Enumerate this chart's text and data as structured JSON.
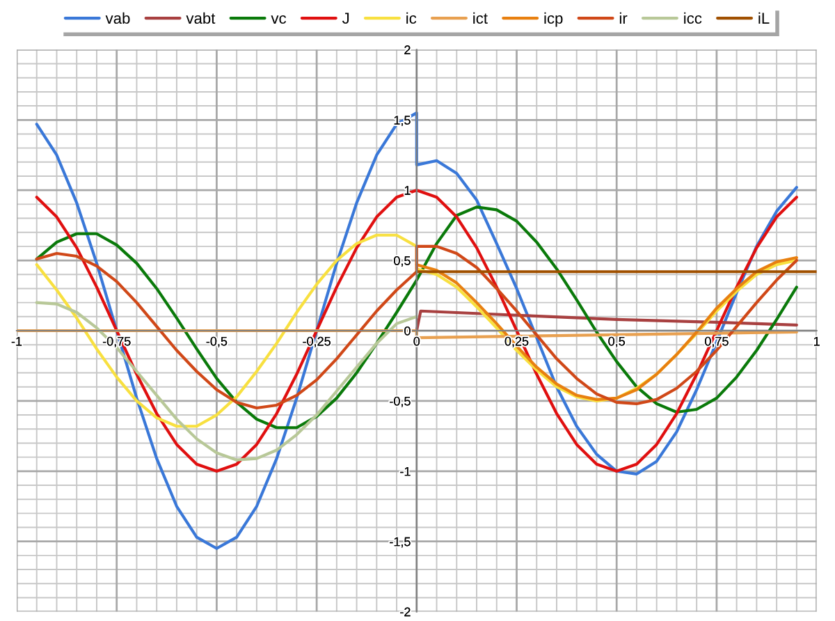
{
  "chart_data": {
    "type": "line",
    "legend": "top",
    "grid": true,
    "xlim": [
      -1,
      1
    ],
    "ylim": [
      -2,
      2
    ],
    "xticks": [
      -1,
      {
        "value": -0.75,
        "label": "-0,75"
      },
      {
        "value": -0.5,
        "label": "-0,5"
      },
      {
        "value": -0.25,
        "label": "-0,25"
      },
      0,
      {
        "value": 0.25,
        "label": "0,25"
      },
      {
        "value": 0.5,
        "label": "0,5"
      },
      {
        "value": 0.75,
        "label": "0,75"
      },
      1
    ],
    "yticks": [
      -2,
      {
        "value": -1.5,
        "label": "-1,5"
      },
      -1,
      {
        "value": -0.5,
        "label": "-0,5"
      },
      0,
      {
        "value": 0.5,
        "label": "0,5"
      },
      1,
      {
        "value": 1.5,
        "label": "1,5"
      },
      2
    ],
    "series": [
      {
        "name": "vab",
        "color": "#3a78d8",
        "x": [
          -0.95,
          -0.9,
          -0.85,
          -0.8,
          -0.75,
          -0.7,
          -0.65,
          -0.6,
          -0.55,
          -0.5,
          -0.45,
          -0.4,
          -0.35,
          -0.3,
          -0.25,
          -0.2,
          -0.15,
          -0.1,
          -0.05,
          0,
          0,
          0.05,
          0.1,
          0.15,
          0.2,
          0.25,
          0.3,
          0.35,
          0.4,
          0.45,
          0.5,
          0.55,
          0.6,
          0.65,
          0.7,
          0.75,
          0.8,
          0.85,
          0.9,
          0.95
        ],
        "values": [
          1.47,
          1.25,
          0.91,
          0.48,
          0,
          -0.48,
          -0.91,
          -1.25,
          -1.47,
          -1.55,
          -1.47,
          -1.25,
          -0.91,
          -0.48,
          0,
          0.48,
          0.91,
          1.25,
          1.47,
          1.55,
          1.18,
          1.21,
          1.12,
          0.93,
          0.62,
          0.3,
          -0.05,
          -0.4,
          -0.68,
          -0.88,
          -1.0,
          -1.02,
          -0.93,
          -0.72,
          -0.42,
          -0.08,
          0.27,
          0.6,
          0.85,
          1.02
        ]
      },
      {
        "name": "vabt",
        "color": "#a84040",
        "x": [
          0,
          0.01,
          0.25,
          0.5,
          0.75,
          0.95
        ],
        "values": [
          0,
          0.14,
          0.11,
          0.08,
          0.06,
          0.04
        ]
      },
      {
        "name": "vc",
        "color": "#0a7a0a",
        "x": [
          -0.95,
          -0.9,
          -0.85,
          -0.8,
          -0.75,
          -0.7,
          -0.65,
          -0.6,
          -0.55,
          -0.5,
          -0.45,
          -0.4,
          -0.35,
          -0.3,
          -0.25,
          -0.2,
          -0.15,
          -0.1,
          -0.05,
          0,
          0.05,
          0.1,
          0.15,
          0.2,
          0.25,
          0.3,
          0.35,
          0.4,
          0.45,
          0.5,
          0.55,
          0.6,
          0.65,
          0.7,
          0.75,
          0.8,
          0.85,
          0.9,
          0.95
        ],
        "values": [
          0.51,
          0.63,
          0.69,
          0.69,
          0.61,
          0.48,
          0.3,
          0.09,
          -0.13,
          -0.34,
          -0.51,
          -0.63,
          -0.69,
          -0.69,
          -0.61,
          -0.48,
          -0.3,
          -0.09,
          0.13,
          0.36,
          0.62,
          0.82,
          0.88,
          0.86,
          0.78,
          0.63,
          0.44,
          0.22,
          -0.01,
          -0.22,
          -0.4,
          -0.52,
          -0.58,
          -0.56,
          -0.48,
          -0.33,
          -0.14,
          0.08,
          0.31
        ]
      },
      {
        "name": "J",
        "color": "#e01010",
        "x": [
          -0.95,
          -0.9,
          -0.85,
          -0.8,
          -0.75,
          -0.7,
          -0.65,
          -0.6,
          -0.55,
          -0.5,
          -0.45,
          -0.4,
          -0.35,
          -0.3,
          -0.25,
          -0.2,
          -0.15,
          -0.1,
          -0.05,
          0,
          0.05,
          0.1,
          0.15,
          0.2,
          0.25,
          0.3,
          0.35,
          0.4,
          0.45,
          0.5,
          0.55,
          0.6,
          0.65,
          0.7,
          0.75,
          0.8,
          0.85,
          0.9,
          0.95
        ],
        "values": [
          0.95,
          0.81,
          0.59,
          0.31,
          0,
          -0.31,
          -0.59,
          -0.81,
          -0.95,
          -1,
          -0.95,
          -0.81,
          -0.59,
          -0.31,
          0,
          0.31,
          0.59,
          0.81,
          0.95,
          1,
          0.95,
          0.81,
          0.59,
          0.31,
          0,
          -0.31,
          -0.59,
          -0.81,
          -0.95,
          -1,
          -0.95,
          -0.81,
          -0.59,
          -0.31,
          0,
          0.31,
          0.59,
          0.81,
          0.95
        ]
      },
      {
        "name": "ic",
        "color": "#f8e040",
        "x": [
          -0.95,
          -0.9,
          -0.85,
          -0.8,
          -0.75,
          -0.7,
          -0.65,
          -0.6,
          -0.55,
          -0.5,
          -0.45,
          -0.4,
          -0.35,
          -0.3,
          -0.25,
          -0.2,
          -0.15,
          -0.1,
          -0.05,
          0,
          0,
          0.05,
          0.1,
          0.15,
          0.2,
          0.25,
          0.3,
          0.35,
          0.4,
          0.45,
          0.5,
          0.55,
          0.6,
          0.65,
          0.7,
          0.75,
          0.8,
          0.85,
          0.9,
          0.95
        ],
        "values": [
          0.47,
          0.29,
          0.09,
          -0.13,
          -0.33,
          -0.5,
          -0.62,
          -0.68,
          -0.68,
          -0.6,
          -0.47,
          -0.29,
          -0.09,
          0.13,
          0.33,
          0.5,
          0.62,
          0.68,
          0.68,
          0.6,
          0.44,
          0.4,
          0.31,
          0.17,
          0.02,
          -0.14,
          -0.28,
          -0.4,
          -0.47,
          -0.5,
          -0.48,
          -0.41,
          -0.31,
          -0.17,
          -0.02,
          0.14,
          0.28,
          0.4,
          0.47,
          0.5
        ]
      },
      {
        "name": "ict",
        "color": "#e8a050",
        "x": [
          -1,
          0,
          0,
          0.95
        ],
        "values": [
          0,
          0,
          -0.05,
          -0.01
        ]
      },
      {
        "name": "icp",
        "color": "#e88010",
        "x": [
          0,
          0.05,
          0.1,
          0.15,
          0.2,
          0.25,
          0.3,
          0.35,
          0.4,
          0.45,
          0.5,
          0.55,
          0.6,
          0.65,
          0.7,
          0.75,
          0.8,
          0.85,
          0.9,
          0.95
        ],
        "values": [
          0.47,
          0.43,
          0.34,
          0.2,
          0.05,
          -0.11,
          -0.26,
          -0.38,
          -0.46,
          -0.49,
          -0.48,
          -0.42,
          -0.31,
          -0.17,
          -0.01,
          0.16,
          0.3,
          0.42,
          0.49,
          0.52
        ]
      },
      {
        "name": "ir",
        "color": "#d04818",
        "x": [
          -0.95,
          -0.9,
          -0.85,
          -0.8,
          -0.75,
          -0.7,
          -0.65,
          -0.6,
          -0.55,
          -0.5,
          -0.45,
          -0.4,
          -0.35,
          -0.3,
          -0.25,
          -0.2,
          -0.15,
          -0.1,
          -0.05,
          0,
          0,
          0.05,
          0.1,
          0.15,
          0.2,
          0.25,
          0.3,
          0.35,
          0.4,
          0.45,
          0.5,
          0.55,
          0.6,
          0.65,
          0.7,
          0.75,
          0.8,
          0.85,
          0.9,
          0.95
        ],
        "values": [
          0.51,
          0.55,
          0.53,
          0.46,
          0.35,
          0.2,
          0.03,
          -0.14,
          -0.29,
          -0.42,
          -0.51,
          -0.55,
          -0.53,
          -0.46,
          -0.35,
          -0.2,
          -0.03,
          0.14,
          0.29,
          0.42,
          0.6,
          0.6,
          0.55,
          0.45,
          0.3,
          0.14,
          -0.03,
          -0.2,
          -0.34,
          -0.45,
          -0.51,
          -0.52,
          -0.49,
          -0.41,
          -0.29,
          -0.14,
          0.03,
          0.2,
          0.36,
          0.5
        ]
      },
      {
        "name": "icc",
        "color": "#b8c898",
        "x": [
          -0.95,
          -0.9,
          -0.85,
          -0.8,
          -0.75,
          -0.7,
          -0.65,
          -0.6,
          -0.55,
          -0.5,
          -0.45,
          -0.4,
          -0.35,
          -0.3,
          -0.25,
          -0.2,
          -0.15,
          -0.1,
          -0.05,
          0
        ],
        "values": [
          0.2,
          0.19,
          0.13,
          0.02,
          -0.12,
          -0.29,
          -0.46,
          -0.63,
          -0.77,
          -0.87,
          -0.92,
          -0.91,
          -0.85,
          -0.74,
          -0.6,
          -0.43,
          -0.26,
          -0.09,
          0.05,
          0.1
        ]
      },
      {
        "name": "iL",
        "color": "#a05000",
        "x": [
          0,
          1
        ],
        "values": [
          0.42,
          0.42
        ]
      }
    ]
  }
}
